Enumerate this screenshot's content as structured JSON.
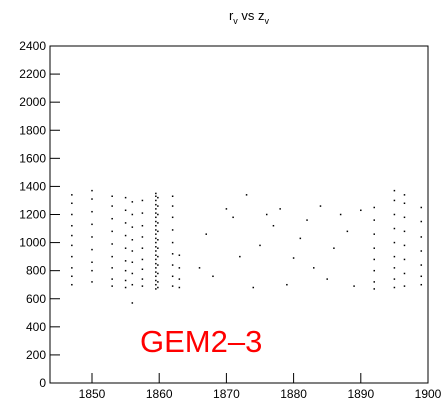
{
  "chart_data": {
    "type": "scatter",
    "title": [
      "r",
      "v",
      " vs z",
      "v"
    ],
    "annotation": "GEM2–3",
    "annotation_color": "#ff0000",
    "color": "#000000",
    "xlim": [
      1843.75,
      1900
    ],
    "ylim": [
      0,
      2400
    ],
    "xticks": [
      1850,
      1860,
      1870,
      1880,
      1890,
      1900
    ],
    "yticks": [
      0,
      200,
      400,
      600,
      800,
      1000,
      1200,
      1400,
      1600,
      1800,
      2000,
      2200,
      2400
    ],
    "x": [
      1847,
      1847,
      1847,
      1847,
      1847,
      1847,
      1847,
      1847,
      1847,
      1847,
      1850,
      1850,
      1850,
      1850,
      1850,
      1850,
      1850,
      1850,
      1850,
      1853,
      1853,
      1853,
      1853,
      1853,
      1853,
      1853,
      1853,
      1853,
      1855,
      1855,
      1855,
      1855,
      1855,
      1855,
      1855,
      1855,
      1855,
      1856,
      1856,
      1856,
      1856,
      1856,
      1856,
      1856,
      1856,
      1856,
      1857.5,
      1857.5,
      1857.5,
      1857.5,
      1857.5,
      1857.5,
      1857.5,
      1857.5,
      1857.5,
      1859.5,
      1859.5,
      1859.5,
      1859.5,
      1859.5,
      1859.5,
      1859.5,
      1859.5,
      1859.5,
      1859.5,
      1859.5,
      1859.5,
      1859.5,
      1859.5,
      1859.5,
      1859.5,
      1859.5,
      1859.5,
      1859.5,
      1859.5,
      1859.5,
      1859.5,
      1859.5,
      1859.5,
      1859.8,
      1859.8,
      1859.8,
      1859.8,
      1859.8,
      1859.8,
      1859.8,
      1859.8,
      1859.8,
      1859.8,
      1859.8,
      1859.8,
      1862,
      1862,
      1862,
      1862,
      1862,
      1862,
      1862,
      1862,
      1862,
      1863,
      1863,
      1863,
      1863,
      1866,
      1867,
      1868,
      1870,
      1871,
      1872,
      1873,
      1874,
      1875,
      1876,
      1877,
      1878,
      1879,
      1880,
      1881,
      1882,
      1883,
      1884,
      1885,
      1886,
      1887,
      1888,
      1889,
      1890,
      1892,
      1892,
      1892,
      1892,
      1892,
      1892,
      1892,
      1892,
      1895,
      1895,
      1895,
      1895,
      1895,
      1895,
      1895,
      1895,
      1895,
      1896.5,
      1896.5,
      1896.5,
      1896.5,
      1896.5,
      1896.5,
      1896.5,
      1896.5,
      1899,
      1899,
      1899,
      1899,
      1899,
      1899,
      1899
    ],
    "y": [
      700,
      760,
      820,
      900,
      980,
      1050,
      1120,
      1200,
      1280,
      1340,
      720,
      800,
      860,
      950,
      1040,
      1130,
      1220,
      1310,
      1370,
      690,
      740,
      820,
      900,
      990,
      1080,
      1170,
      1260,
      1330,
      680,
      730,
      800,
      870,
      960,
      1050,
      1140,
      1230,
      1320,
      570,
      700,
      780,
      860,
      940,
      1020,
      1110,
      1200,
      1290,
      690,
      740,
      810,
      880,
      960,
      1040,
      1120,
      1210,
      1300,
      670,
      700,
      730,
      760,
      790,
      820,
      850,
      880,
      910,
      940,
      970,
      1000,
      1030,
      1060,
      1090,
      1120,
      1150,
      1180,
      1210,
      1240,
      1270,
      1300,
      1330,
      1350,
      680,
      720,
      780,
      840,
      900,
      960,
      1020,
      1080,
      1140,
      1200,
      1260,
      1320,
      690,
      760,
      840,
      920,
      1000,
      1090,
      1180,
      1260,
      1330,
      680,
      740,
      820,
      910,
      820,
      1060,
      760,
      1240,
      1180,
      900,
      1340,
      680,
      980,
      1200,
      1120,
      1240,
      700,
      890,
      1030,
      1160,
      820,
      1260,
      740,
      960,
      1200,
      1080,
      690,
      1230,
      670,
      720,
      800,
      880,
      960,
      1060,
      1160,
      1250,
      680,
      740,
      820,
      900,
      1000,
      1100,
      1200,
      1300,
      1370,
      690,
      780,
      880,
      980,
      1080,
      1180,
      1280,
      1340,
      700,
      760,
      840,
      940,
      1040,
      1150,
      1250
    ]
  }
}
